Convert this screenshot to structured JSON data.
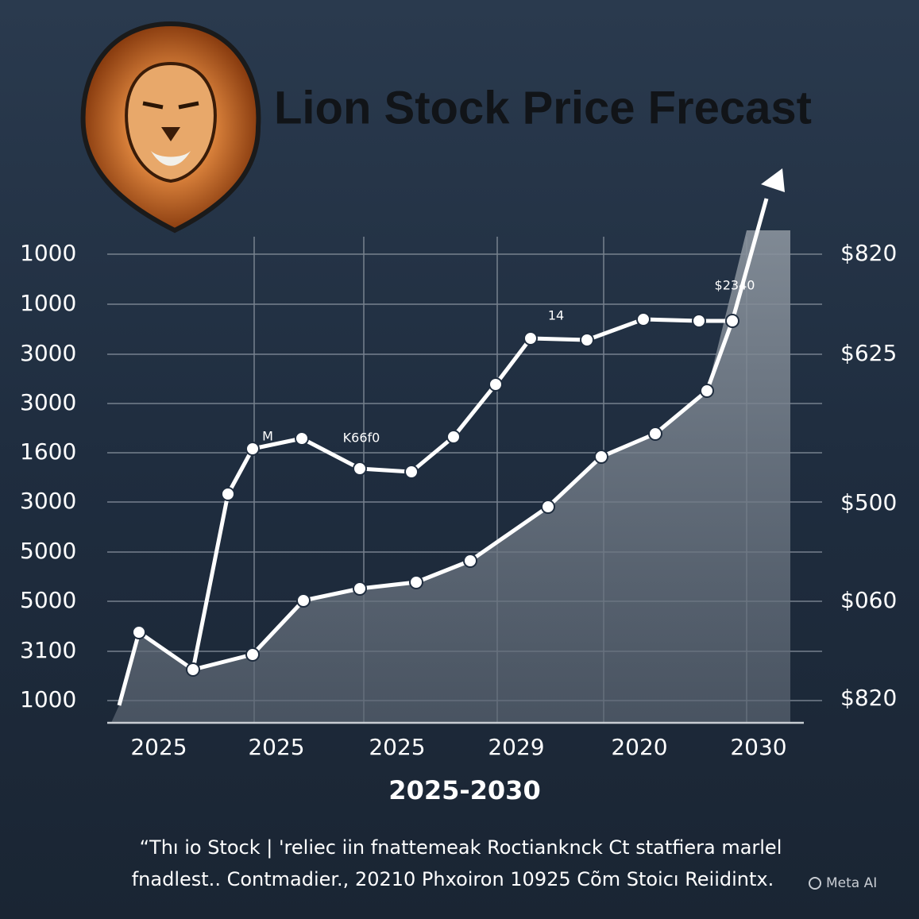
{
  "title": "Lion Stock Price Frecast",
  "left_axis_labels": [
    "1000",
    "1000",
    "3000",
    "3000",
    "1600",
    "3000",
    "5000",
    "5000",
    "3100",
    "1000"
  ],
  "right_axis_labels": [
    "$820",
    "$625",
    "$500",
    "$060",
    "$820"
  ],
  "x_labels": [
    "2025",
    "2025",
    "2025",
    "2029",
    "2020",
    "2030"
  ],
  "x_axis_title": "2025-2030",
  "annotations": [
    "M",
    "K66f0",
    "14",
    "$2340"
  ],
  "caption": [
    "“Thı io Stock | 'reliec iin fnattemeak Roctianknck Ct statfiera marlel",
    "fnadlest.. Contmadier., 20210 Phxoiron 10925 Cõm Stoicı Reiidintx."
  ],
  "watermark": "Meta AI"
}
